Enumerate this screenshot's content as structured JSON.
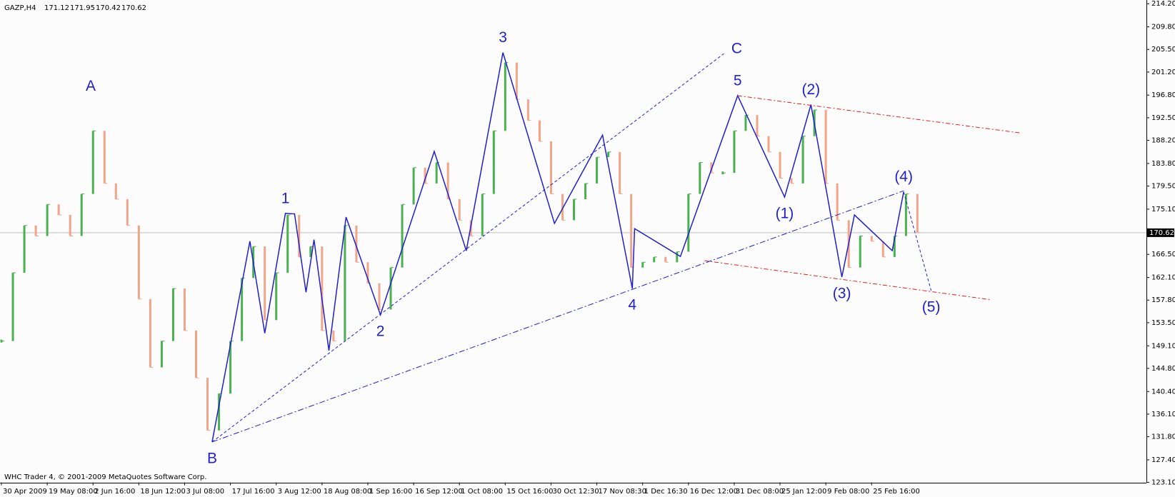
{
  "chart_data": {
    "type": "line",
    "title": "GAZP,H4",
    "quote": [
      171.12,
      171.95,
      170.42,
      170.62
    ],
    "footer": "WHC Trader 4, © 2001-2009 MetaQuotes Software Corp.",
    "categories": [
      "30 Apr 2009",
      null,
      null,
      null,
      "19 May 08:00",
      null,
      null,
      null,
      "2 Jun 16:00",
      null,
      null,
      null,
      "18 Jun 12:00",
      null,
      null,
      null,
      "3 Jul 08:00",
      null,
      null,
      null,
      "17 Jul 16:00",
      null,
      null,
      null,
      "3 Aug 12:00",
      null,
      null,
      null,
      "18 Aug 08:00",
      null,
      null,
      null,
      "1 Sep 16:00",
      null,
      null,
      null,
      "16 Sep 12:00",
      null,
      null,
      null,
      "1 Oct 08:00",
      null,
      null,
      null,
      "15 Oct 16:00",
      null,
      null,
      null,
      "30 Oct 12:30",
      null,
      null,
      null,
      "17 Nov 08:30",
      null,
      null,
      null,
      "1 Dec 16:30",
      null,
      null,
      null,
      "16 Dec 12:00",
      null,
      null,
      null,
      "31 Dec 08:00",
      null,
      null,
      null,
      "25 Jan 12:00",
      null,
      null,
      null,
      "9 Feb 08:00",
      null,
      null,
      null,
      "25 Feb 16:00",
      null,
      null,
      null,
      null
    ],
    "values": [
      150,
      163,
      172,
      170,
      176,
      174,
      170,
      178,
      190,
      180,
      177,
      172,
      158,
      145,
      150,
      160,
      152,
      143,
      133,
      140,
      150,
      162,
      168,
      154,
      163,
      174,
      166,
      168,
      152,
      150,
      172,
      165,
      161,
      156,
      164,
      176,
      183,
      180,
      184,
      177,
      173,
      170,
      178,
      190,
      203,
      196,
      192,
      188,
      178,
      173,
      177,
      180,
      185,
      186,
      178,
      164,
      165,
      166,
      165,
      167,
      178,
      184,
      182,
      182,
      190,
      193,
      189,
      186,
      181,
      180,
      189,
      194,
      180,
      173,
      164,
      170,
      169,
      166,
      170,
      178,
      170.62
    ],
    "colors": {
      "up": "#4caf50",
      "down": "#f2a488"
    },
    "last_price": 170.62,
    "xlim": [
      0,
      100
    ],
    "ylim": [
      123.1,
      214.2
    ],
    "yticks": [
      {
        "value": 123.1,
        "label": "123.10"
      },
      {
        "value": 127.4,
        "label": "127.40"
      },
      {
        "value": 131.8,
        "label": "131.80"
      },
      {
        "value": 136.1,
        "label": "136.10"
      },
      {
        "value": 140.4,
        "label": "140.40"
      },
      {
        "value": 144.8,
        "label": "144.80"
      },
      {
        "value": 149.1,
        "label": "149.10"
      },
      {
        "value": 153.5,
        "label": "153.50"
      },
      {
        "value": 157.8,
        "label": "157.80"
      },
      {
        "value": 162.1,
        "label": "162.10"
      },
      {
        "value": 166.5,
        "label": "166.50"
      },
      {
        "value": 175.1,
        "label": "175.10"
      },
      {
        "value": 179.5,
        "label": "179.50"
      },
      {
        "value": 183.8,
        "label": "183.80"
      },
      {
        "value": 188.2,
        "label": "188.20"
      },
      {
        "value": 192.5,
        "label": "192.50"
      },
      {
        "value": 196.8,
        "label": "196.80"
      },
      {
        "value": 201.2,
        "label": "201.20"
      },
      {
        "value": 205.5,
        "label": "205.50"
      },
      {
        "value": 209.8,
        "label": "209.80"
      },
      {
        "value": 214.2,
        "label": "214.20"
      }
    ],
    "waves": {
      "color": "#2020d0",
      "points": [
        {
          "x": 18.4,
          "y": 130.8
        },
        {
          "x": 21.7,
          "y": 169.0
        },
        {
          "x": 23.0,
          "y": 151.5
        },
        {
          "x": 24.8,
          "y": 174.3
        },
        {
          "x": 25.6,
          "y": 174.2
        },
        {
          "x": 26.6,
          "y": 159.3
        },
        {
          "x": 27.3,
          "y": 169.3
        },
        {
          "x": 28.6,
          "y": 148.2
        },
        {
          "x": 30.1,
          "y": 173.6
        },
        {
          "x": 33.1,
          "y": 155.0
        },
        {
          "x": 37.8,
          "y": 186.1
        },
        {
          "x": 40.6,
          "y": 167.2
        },
        {
          "x": 43.8,
          "y": 204.9
        },
        {
          "x": 48.3,
          "y": 172.4
        },
        {
          "x": 52.5,
          "y": 189.2
        },
        {
          "x": 55.1,
          "y": 160.0
        },
        {
          "x": 55.3,
          "y": 171.4
        },
        {
          "x": 59.3,
          "y": 166.1
        },
        {
          "x": 64.3,
          "y": 196.7
        },
        {
          "x": 68.4,
          "y": 177.4
        },
        {
          "x": 70.7,
          "y": 195.0
        },
        {
          "x": 73.4,
          "y": 162.2
        },
        {
          "x": 74.5,
          "y": 174.0
        },
        {
          "x": 77.8,
          "y": 167.2
        },
        {
          "x": 78.8,
          "y": 178.4
        }
      ]
    },
    "trendlines": [
      {
        "color": "#2020d0",
        "dash": "4 3",
        "points": [
          {
            "x": 78.8,
            "y": 178.4
          },
          {
            "x": 81.2,
            "y": 159.6
          }
        ]
      },
      {
        "color": "#2020d0",
        "dash": "4 3",
        "points": [
          {
            "x": 18.4,
            "y": 130.8
          },
          {
            "x": 63.1,
            "y": 204.7
          }
        ]
      },
      {
        "color": "#2020d0",
        "dash": "8 3 2 3",
        "points": [
          {
            "x": 18.4,
            "y": 130.8
          },
          {
            "x": 78.8,
            "y": 178.6
          }
        ]
      },
      {
        "color": "#e02020",
        "dash": "6 3 2 3",
        "points": [
          {
            "x": 64.3,
            "y": 196.7
          },
          {
            "x": 89.0,
            "y": 189.6
          }
        ]
      },
      {
        "color": "#e02020",
        "dash": "6 3 2 3",
        "points": [
          {
            "x": 61.4,
            "y": 165.3
          },
          {
            "x": 86.3,
            "y": 157.9
          }
        ]
      }
    ],
    "annotations": [
      {
        "text": "A",
        "x": 7.8,
        "y": 195.7,
        "pos": "above"
      },
      {
        "text": "B",
        "x": 18.4,
        "y": 130.8,
        "pos": "below"
      },
      {
        "text": "1",
        "x": 24.8,
        "y": 174.3,
        "pos": "above"
      },
      {
        "text": "2",
        "x": 33.1,
        "y": 155.0,
        "pos": "below"
      },
      {
        "text": "3",
        "x": 43.8,
        "y": 204.9,
        "pos": "above"
      },
      {
        "text": "4",
        "x": 55.1,
        "y": 160.0,
        "pos": "below"
      },
      {
        "text": "5",
        "x": 64.3,
        "y": 196.7,
        "pos": "above"
      },
      {
        "text": "C",
        "x": 63.1,
        "y": 204.7,
        "pos": "right"
      },
      {
        "text": "(1)",
        "x": 68.4,
        "y": 177.4,
        "pos": "below"
      },
      {
        "text": "(2)",
        "x": 70.7,
        "y": 195.0,
        "pos": "above"
      },
      {
        "text": "(3)",
        "x": 73.4,
        "y": 162.2,
        "pos": "below"
      },
      {
        "text": "(4)",
        "x": 78.8,
        "y": 178.4,
        "pos": "above"
      },
      {
        "text": "(5)",
        "x": 81.2,
        "y": 159.6,
        "pos": "below"
      }
    ]
  }
}
